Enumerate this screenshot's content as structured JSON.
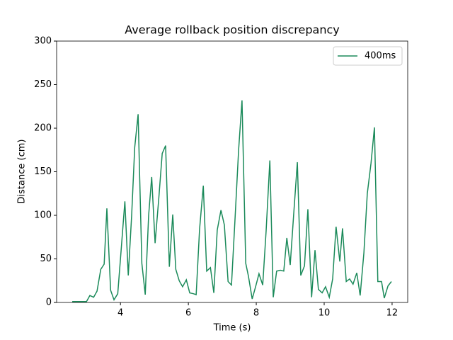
{
  "chart_data": {
    "type": "line",
    "title": "Average rollback position discrepancy",
    "x_label": "Time (s)",
    "y_label": "Distance (cm)",
    "x": [
      2.58,
      2.69,
      2.79,
      2.9,
      3.0,
      3.1,
      3.21,
      3.31,
      3.42,
      3.52,
      3.6,
      3.71,
      3.81,
      3.92,
      4.02,
      4.13,
      4.23,
      4.33,
      4.42,
      4.52,
      4.63,
      4.73,
      4.83,
      4.92,
      5.02,
      5.13,
      5.23,
      5.33,
      5.44,
      5.54,
      5.63,
      5.73,
      5.83,
      5.94,
      6.04,
      6.15,
      6.23,
      6.33,
      6.44,
      6.54,
      6.65,
      6.75,
      6.85,
      6.96,
      7.06,
      7.17,
      7.27,
      7.38,
      7.48,
      7.58,
      7.69,
      7.77,
      7.88,
      7.98,
      8.08,
      8.19,
      8.29,
      8.4,
      8.5,
      8.6,
      8.71,
      8.81,
      8.9,
      9.0,
      9.1,
      9.21,
      9.31,
      9.42,
      9.52,
      9.63,
      9.73,
      9.83,
      9.94,
      10.04,
      10.15,
      10.25,
      10.35,
      10.46,
      10.54,
      10.65,
      10.75,
      10.85,
      10.96,
      11.06,
      11.17,
      11.27,
      11.38,
      11.48,
      11.58,
      11.69,
      11.77,
      11.88,
      11.98
    ],
    "series": [
      {
        "name": "400ms",
        "color": "#1b8a5a",
        "values": [
          1,
          1,
          1,
          1,
          1,
          8,
          6,
          13,
          38,
          44,
          108,
          14,
          3,
          10,
          60,
          116,
          31,
          100,
          178,
          216,
          45,
          9,
          100,
          144,
          68,
          120,
          171,
          180,
          41,
          101,
          38,
          25,
          18,
          26,
          11,
          10,
          9,
          84,
          134,
          36,
          40,
          11,
          83,
          106,
          89,
          24,
          20,
          100,
          175,
          232,
          45,
          30,
          4,
          18,
          33,
          20,
          82,
          163,
          6,
          36,
          37,
          36,
          74,
          43,
          100,
          161,
          31,
          42,
          107,
          6,
          60,
          15,
          11,
          18,
          6,
          27,
          87,
          47,
          85,
          24,
          27,
          21,
          34,
          8,
          57,
          125,
          160,
          201,
          24,
          24,
          5,
          19,
          24
        ]
      }
    ],
    "xlim": [
      2.12,
      12.46
    ],
    "ylim": [
      0,
      300
    ],
    "xticks": [
      4,
      6,
      8,
      10,
      12
    ],
    "yticks": [
      0,
      50,
      100,
      150,
      200,
      250,
      300
    ],
    "legend": "upper right"
  }
}
